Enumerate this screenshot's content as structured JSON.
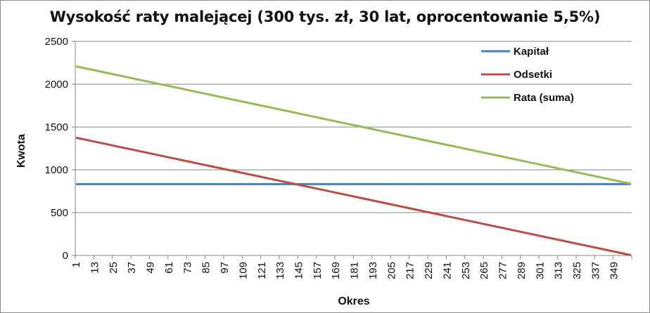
{
  "chart_data": {
    "type": "line",
    "title": "Wysokość raty malejącej (300 tys. zł, 30 lat, oprocentowanie 5,5%)",
    "xlabel": "Okres",
    "ylabel": "Kwota",
    "ylim": [
      0,
      2500
    ],
    "yticks": [
      0,
      500,
      1000,
      1500,
      2000,
      2500
    ],
    "xlim": [
      1,
      360
    ],
    "xticks": [
      1,
      13,
      25,
      37,
      49,
      61,
      73,
      85,
      97,
      109,
      121,
      133,
      145,
      157,
      169,
      181,
      193,
      205,
      217,
      229,
      241,
      253,
      265,
      277,
      289,
      301,
      313,
      325,
      337,
      349
    ],
    "grid": true,
    "legend_position": "top-right",
    "series": [
      {
        "name": "Kapitał",
        "color": "#4a7ebb",
        "x": [
          1,
          360
        ],
        "y": [
          833.33,
          833.33
        ]
      },
      {
        "name": "Odsetki",
        "color": "#be4b48",
        "x": [
          1,
          360
        ],
        "y": [
          1375.0,
          3.82
        ]
      },
      {
        "name": "Rata (suma)",
        "color": "#98b954",
        "x": [
          1,
          360
        ],
        "y": [
          2208.33,
          837.15
        ]
      }
    ]
  }
}
